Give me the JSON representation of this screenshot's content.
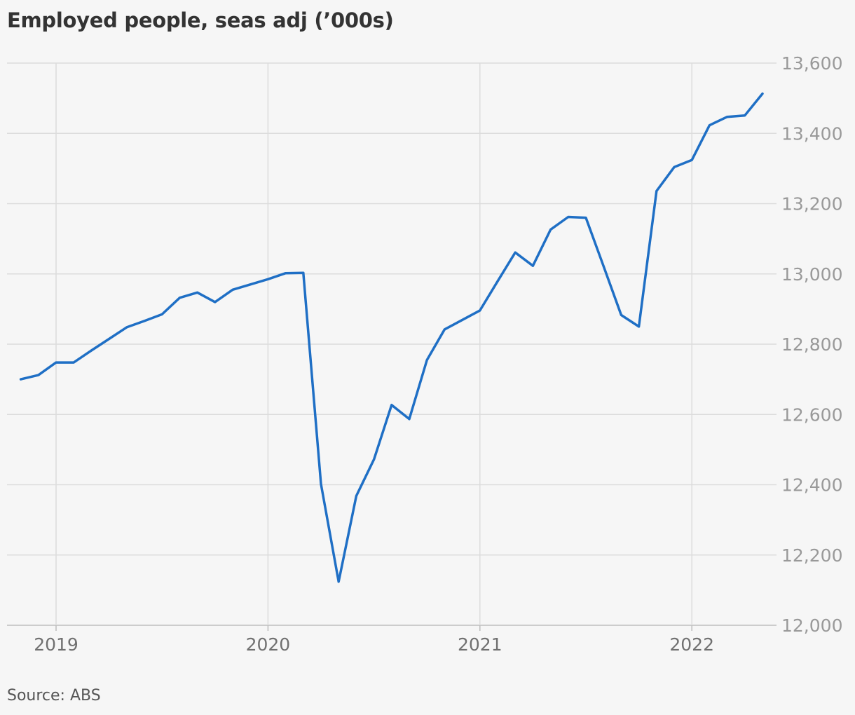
{
  "chart_data": {
    "type": "line",
    "title": "Employed people, seas adj (’000s)",
    "xlabel": "",
    "ylabel": "",
    "ylim": [
      12000,
      13600
    ],
    "y_ticks": [
      {
        "value": 13600,
        "label": "13,600"
      },
      {
        "value": 13400,
        "label": "13,400"
      },
      {
        "value": 13200,
        "label": "13,200"
      },
      {
        "value": 13000,
        "label": "13,000"
      },
      {
        "value": 12800,
        "label": "12,800"
      },
      {
        "value": 12600,
        "label": "12,600"
      },
      {
        "value": 12400,
        "label": "12,400"
      },
      {
        "value": 12200,
        "label": "12,200"
      },
      {
        "value": 12000,
        "label": "12,000"
      }
    ],
    "x_ticks": [
      {
        "value": "2019-01",
        "label": "2019"
      },
      {
        "value": "2020-01",
        "label": "2020"
      },
      {
        "value": "2021-01",
        "label": "2021"
      },
      {
        "value": "2022-01",
        "label": "2022"
      }
    ],
    "grid": true,
    "y_axis_position": "right",
    "colors": {
      "line": "#1f6fc5",
      "grid": "#dcdcdc",
      "background": "#f6f6f6"
    },
    "series": [
      {
        "x": [
          "2018-11",
          "2018-12",
          "2019-01",
          "2019-02",
          "2019-03",
          "2019-04",
          "2019-05",
          "2019-06",
          "2019-07",
          "2019-08",
          "2019-09",
          "2019-10",
          "2019-11",
          "2019-12",
          "2020-01",
          "2020-02",
          "2020-03",
          "2020-04",
          "2020-05",
          "2020-06",
          "2020-07",
          "2020-08",
          "2020-09",
          "2020-10",
          "2020-11",
          "2020-12",
          "2021-01",
          "2021-02",
          "2021-03",
          "2021-04",
          "2021-05",
          "2021-06",
          "2021-07",
          "2021-08",
          "2021-09",
          "2021-10",
          "2021-11",
          "2021-12",
          "2022-01",
          "2022-02",
          "2022-03",
          "2022-04",
          "2022-05"
        ],
        "values": [
          12700,
          12712,
          12748,
          12748,
          12782,
          12815,
          12848,
          12866,
          12885,
          12932,
          12947,
          12920,
          12955,
          12970,
          12985,
          13002,
          13003,
          12402,
          12124,
          12368,
          12472,
          12627,
          12587,
          12755,
          12842,
          12869,
          12896,
          12979,
          13061,
          13023,
          13126,
          13162,
          13160,
          13022,
          12883,
          12850,
          13236,
          13304,
          13324,
          13423,
          13447,
          13451,
          13513
        ]
      }
    ]
  },
  "source": "Source: ABS"
}
